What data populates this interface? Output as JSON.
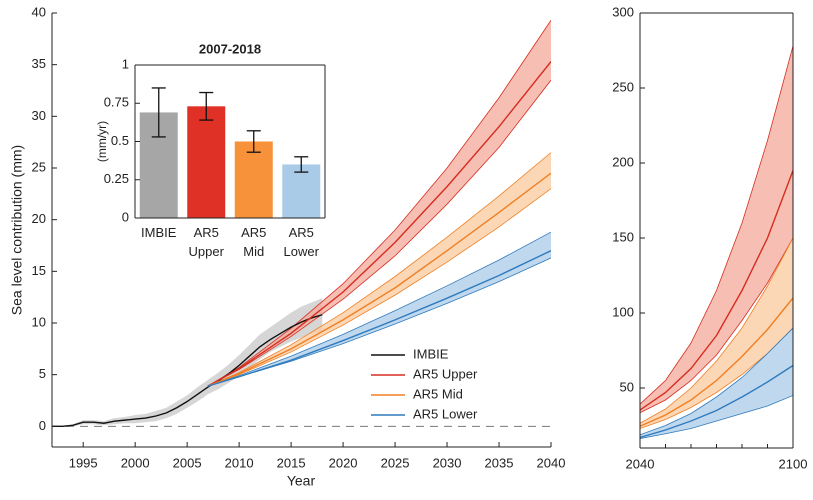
{
  "chart_data": [
    {
      "type": "line",
      "xlabel": "Year",
      "ylabel": "Sea level contribution (mm)",
      "xlim": [
        1992,
        2040
      ],
      "ylim": [
        -2,
        40
      ],
      "xticks": [
        1995,
        2000,
        2005,
        2010,
        2015,
        2020,
        2025,
        2030,
        2035,
        2040
      ],
      "yticks": [
        0,
        5,
        10,
        15,
        20,
        25,
        30,
        35,
        40
      ],
      "hline": 0,
      "legend": "lower right",
      "box": false,
      "series": [
        {
          "name": "IMBIE",
          "color": "#111111",
          "band_color": "#c8c8c8",
          "x": [
            1992,
            1993,
            1994,
            1995,
            1996,
            1997,
            1998,
            1999,
            2000,
            2001,
            2002,
            2003,
            2004,
            2005,
            2006,
            2007,
            2008,
            2009,
            2010,
            2011,
            2012,
            2013,
            2014,
            2015,
            2016,
            2017,
            2018
          ],
          "values": [
            0,
            0,
            0.1,
            0.4,
            0.4,
            0.3,
            0.5,
            0.6,
            0.7,
            0.8,
            1.0,
            1.3,
            1.8,
            2.4,
            3.1,
            3.8,
            4.4,
            5.1,
            5.9,
            6.8,
            7.7,
            8.4,
            9.0,
            9.6,
            10.1,
            10.5,
            10.8
          ],
          "low": [
            0,
            0,
            0,
            0.2,
            0.2,
            0.1,
            0.2,
            0.3,
            0.3,
            0.4,
            0.5,
            0.8,
            1.2,
            1.8,
            2.4,
            3.1,
            3.6,
            4.2,
            4.9,
            5.7,
            6.5,
            7.2,
            7.7,
            8.2,
            8.6,
            9.0,
            9.2
          ],
          "high": [
            0,
            0,
            0.2,
            0.6,
            0.6,
            0.5,
            0.8,
            0.9,
            1.1,
            1.2,
            1.5,
            1.8,
            2.4,
            3.0,
            3.8,
            4.5,
            5.2,
            6.0,
            6.9,
            7.9,
            8.9,
            9.6,
            10.3,
            11.0,
            11.6,
            12.0,
            12.4
          ]
        },
        {
          "name": "AR5 Upper",
          "color": "#d62d20",
          "band_color": "#f4a999",
          "x": [
            2007,
            2010,
            2015,
            2020,
            2025,
            2030,
            2035,
            2040
          ],
          "values": [
            3.9,
            5.6,
            9.0,
            13.0,
            17.8,
            23.2,
            29.0,
            35.3
          ],
          "low": [
            3.9,
            5.5,
            8.7,
            12.3,
            16.5,
            21.5,
            27.0,
            33.5
          ],
          "high": [
            3.9,
            5.7,
            9.5,
            13.8,
            19.0,
            25.0,
            31.8,
            39.3
          ]
        },
        {
          "name": "AR5 Mid",
          "color": "#f07f24",
          "band_color": "#f9c99c",
          "x": [
            2007,
            2010,
            2015,
            2020,
            2025,
            2030,
            2035,
            2040
          ],
          "values": [
            3.9,
            5.1,
            7.5,
            10.3,
            13.4,
            17.0,
            20.7,
            24.5
          ],
          "low": [
            3.9,
            5.0,
            7.2,
            9.8,
            12.7,
            15.9,
            19.3,
            23.0
          ],
          "high": [
            3.9,
            5.2,
            7.9,
            11.0,
            14.5,
            18.3,
            22.3,
            26.5
          ]
        },
        {
          "name": "AR5 Lower",
          "color": "#2f7bbf",
          "band_color": "#a9cbe8",
          "x": [
            2007,
            2010,
            2015,
            2020,
            2025,
            2030,
            2035,
            2040
          ],
          "values": [
            3.9,
            4.8,
            6.4,
            8.3,
            10.3,
            12.4,
            14.6,
            17.0
          ],
          "low": [
            3.9,
            4.8,
            6.3,
            8.0,
            9.9,
            11.9,
            14.0,
            16.3
          ],
          "high": [
            3.9,
            4.9,
            6.8,
            8.9,
            11.2,
            13.6,
            16.1,
            18.8
          ]
        }
      ]
    },
    {
      "type": "bar",
      "title": "2007-2018",
      "ylabel": "(mm/yr)",
      "ylim": [
        0,
        1
      ],
      "yticks": [
        0,
        0.25,
        0.5,
        0.75,
        1
      ],
      "box": true,
      "categories": [
        "IMBIE",
        "AR5 Upper",
        "AR5 Mid",
        "AR5 Lower"
      ],
      "values": [
        0.69,
        0.73,
        0.5,
        0.35
      ],
      "errors": [
        0.16,
        0.09,
        0.07,
        0.05
      ],
      "colors": [
        "#a6a6a6",
        "#e03127",
        "#f7923a",
        "#a9cbe8"
      ]
    },
    {
      "type": "line",
      "xlim": [
        2040,
        2100
      ],
      "ylim": [
        10,
        300
      ],
      "xticks": [
        2040,
        2100
      ],
      "xminorticks": [
        2050,
        2060,
        2070,
        2080,
        2090
      ],
      "yticks": [
        50,
        100,
        150,
        200,
        250,
        300
      ],
      "box": true,
      "series": [
        {
          "color": "#d62d20",
          "band_color": "#f4a999",
          "x": [
            2040,
            2050,
            2060,
            2070,
            2080,
            2090,
            2100
          ],
          "values": [
            35.3,
            47,
            63,
            85,
            115,
            150,
            195
          ],
          "low": [
            33.5,
            42,
            55,
            72,
            95,
            120,
            150
          ],
          "high": [
            39.3,
            55,
            80,
            115,
            160,
            215,
            278
          ]
        },
        {
          "color": "#f07f24",
          "band_color": "#f9c99c",
          "x": [
            2040,
            2050,
            2060,
            2070,
            2080,
            2090,
            2100
          ],
          "values": [
            24.5,
            32,
            42,
            55,
            71,
            89,
            110
          ],
          "low": [
            23.0,
            29,
            37,
            47,
            59,
            73,
            90
          ],
          "high": [
            26.5,
            36,
            50,
            68,
            90,
            118,
            150
          ]
        },
        {
          "color": "#2f7bbf",
          "band_color": "#a9cbe8",
          "x": [
            2040,
            2050,
            2060,
            2070,
            2080,
            2090,
            2100
          ],
          "values": [
            17.0,
            22,
            28,
            35,
            44,
            54,
            65
          ],
          "low": [
            16.3,
            19.5,
            23,
            28,
            33,
            38,
            45
          ],
          "high": [
            18.8,
            25,
            33,
            44,
            57,
            73,
            90
          ]
        }
      ]
    }
  ]
}
